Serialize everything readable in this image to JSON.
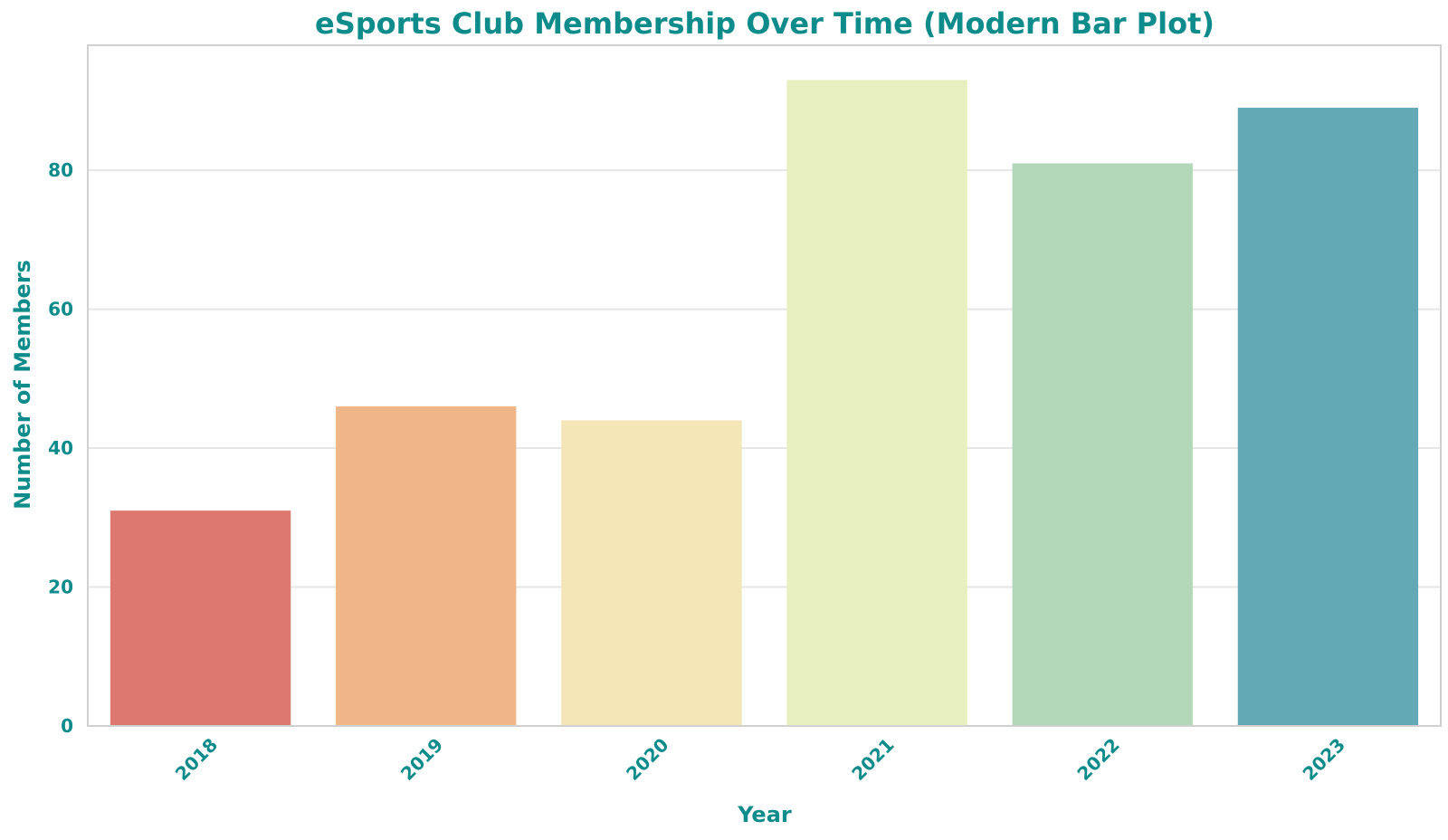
{
  "chart_data": {
    "type": "bar",
    "title": "eSports Club Membership Over Time (Modern Bar Plot)",
    "xlabel": "Year",
    "ylabel": "Number of Members",
    "categories": [
      "2018",
      "2019",
      "2020",
      "2021",
      "2022",
      "2023"
    ],
    "values": [
      31,
      46,
      44,
      93,
      81,
      89
    ],
    "bar_colors": [
      "#dd7870",
      "#efb687",
      "#f4e6b7",
      "#e8f0c0",
      "#b3d8b9",
      "#62a8b5"
    ],
    "ylim": [
      0,
      98
    ],
    "yticks": [
      0,
      20,
      40,
      60,
      80
    ],
    "grid": true,
    "legend": "none",
    "text_color": "#0e8b8b",
    "grid_color": "#e6e6e6",
    "axis_color": "#d0d0d0"
  }
}
